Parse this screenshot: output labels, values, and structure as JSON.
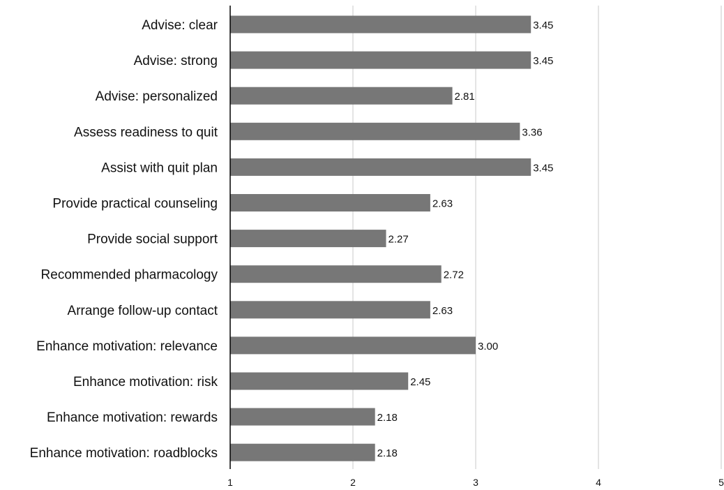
{
  "chart_data": {
    "type": "bar",
    "orientation": "horizontal",
    "categories": [
      "Advise: clear",
      "Advise: strong",
      "Advise: personalized",
      "Assess readiness to quit",
      "Assist with quit plan",
      "Provide practical counseling",
      "Provide social support",
      "Recommended pharmacology",
      "Arrange follow-up contact",
      "Enhance motivation: relevance",
      "Enhance motivation: risk",
      "Enhance motivation: rewards",
      "Enhance motivation: roadblocks"
    ],
    "values": [
      3.45,
      3.45,
      2.81,
      3.36,
      3.45,
      2.63,
      2.27,
      2.72,
      2.63,
      3.0,
      2.45,
      2.18,
      2.18
    ],
    "value_labels": [
      "3.45",
      "3.45",
      "2.81",
      "3.36",
      "3.45",
      "2.63",
      "2.27",
      "2.72",
      "2.63",
      "3.00",
      "2.45",
      "2.18",
      "2.18"
    ],
    "xlim": [
      1,
      5
    ],
    "xticks": [
      "1",
      "2",
      "3",
      "4",
      "5"
    ],
    "title": "",
    "xlabel": "",
    "ylabel": "",
    "grid": "vertical",
    "legend": "none",
    "bar_color": "#777777",
    "grid_color": "#c8c8c8",
    "axis_color": "#000000"
  }
}
